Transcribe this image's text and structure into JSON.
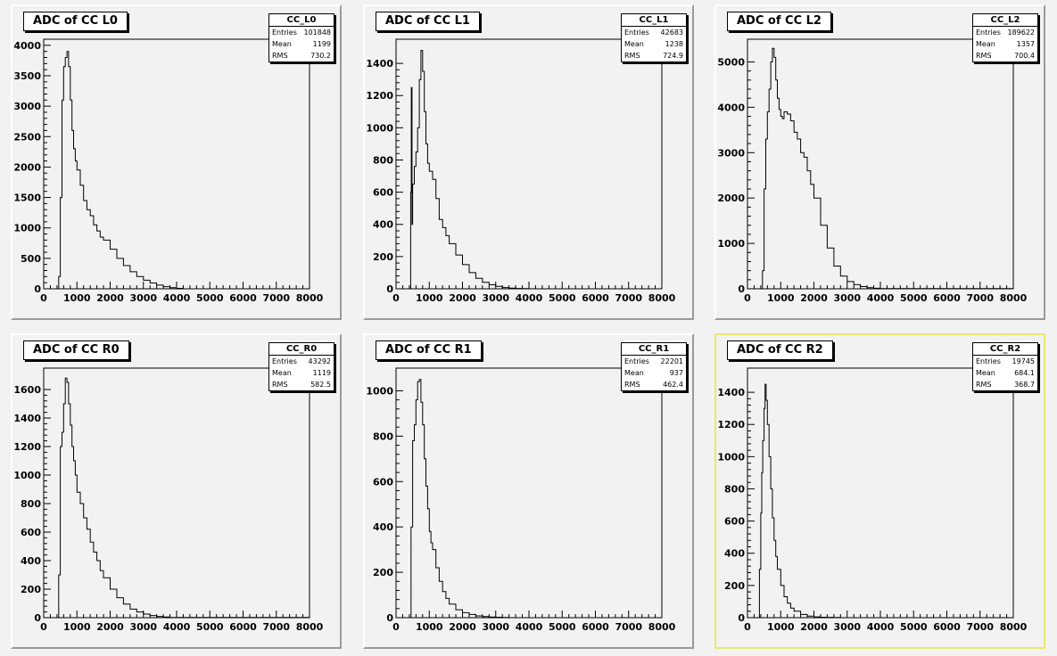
{
  "chart_data": [
    {
      "type": "bar",
      "histogram": "CC_L0",
      "title": "ADC of CC L0",
      "entries": "101848",
      "mean": "1199",
      "rms": "730.2",
      "xlim": [
        0,
        8000
      ],
      "ylim": [
        0,
        4100
      ],
      "yticks": [
        0,
        500,
        1000,
        1500,
        2000,
        2500,
        3000,
        3500,
        4000
      ],
      "xticks": [
        0,
        1000,
        2000,
        3000,
        4000,
        5000,
        6000,
        7000,
        8000
      ],
      "curve": {
        "x": [
          0,
          400,
          450,
          500,
          550,
          600,
          650,
          700,
          750,
          800,
          850,
          900,
          950,
          1000,
          1100,
          1200,
          1300,
          1400,
          1500,
          1600,
          1700,
          1800,
          2000,
          2200,
          2400,
          2600,
          2800,
          3000,
          3200,
          3400,
          3600,
          3800,
          4000,
          4200,
          8000
        ],
        "y": [
          0,
          0,
          200,
          1500,
          3100,
          3650,
          3800,
          3900,
          3650,
          3100,
          2600,
          2300,
          2100,
          1950,
          1700,
          1450,
          1300,
          1200,
          1050,
          950,
          850,
          800,
          650,
          500,
          380,
          280,
          200,
          140,
          95,
          60,
          35,
          18,
          8,
          0,
          0
        ]
      }
    },
    {
      "type": "bar",
      "histogram": "CC_L1",
      "title": "ADC of CC L1",
      "entries": "42683",
      "mean": "1238",
      "rms": "724.9",
      "xlim": [
        0,
        8000
      ],
      "ylim": [
        0,
        1550
      ],
      "yticks": [
        0,
        200,
        400,
        600,
        800,
        1000,
        1200,
        1400
      ],
      "xticks": [
        0,
        1000,
        2000,
        3000,
        4000,
        5000,
        6000,
        7000,
        8000
      ],
      "curve": {
        "x": [
          0,
          400,
          440,
          460,
          480,
          500,
          550,
          600,
          650,
          700,
          750,
          800,
          850,
          900,
          950,
          1000,
          1100,
          1200,
          1300,
          1400,
          1500,
          1600,
          1800,
          2000,
          2200,
          2400,
          2600,
          2800,
          3000,
          3200,
          3400,
          3600,
          3800,
          4000,
          8000
        ],
        "y": [
          0,
          0,
          600,
          1250,
          400,
          650,
          760,
          850,
          1000,
          1300,
          1480,
          1350,
          1100,
          900,
          780,
          730,
          680,
          560,
          430,
          380,
          330,
          280,
          210,
          150,
          100,
          65,
          40,
          25,
          15,
          8,
          4,
          2,
          1,
          0,
          0
        ]
      }
    },
    {
      "type": "bar",
      "histogram": "CC_L2",
      "title": "ADC of CC L2",
      "entries": "189622",
      "mean": "1357",
      "rms": "700.4",
      "xlim": [
        0,
        8000
      ],
      "ylim": [
        0,
        5500
      ],
      "yticks": [
        0,
        1000,
        2000,
        3000,
        4000,
        5000
      ],
      "xticks": [
        0,
        1000,
        2000,
        3000,
        4000,
        5000,
        6000,
        7000,
        8000
      ],
      "curve": {
        "x": [
          0,
          400,
          450,
          500,
          550,
          600,
          650,
          700,
          750,
          800,
          850,
          900,
          950,
          1000,
          1050,
          1100,
          1200,
          1300,
          1400,
          1500,
          1600,
          1700,
          1800,
          1900,
          2000,
          2200,
          2400,
          2600,
          2800,
          3000,
          3200,
          3400,
          3600,
          3800,
          4000,
          8000
        ],
        "y": [
          0,
          0,
          400,
          2200,
          3300,
          3900,
          4400,
          5000,
          5300,
          5100,
          4600,
          4200,
          3950,
          3800,
          3750,
          3900,
          3850,
          3700,
          3450,
          3300,
          3000,
          2900,
          2600,
          2300,
          2000,
          1400,
          900,
          500,
          280,
          160,
          90,
          50,
          25,
          12,
          5,
          0
        ]
      }
    },
    {
      "type": "bar",
      "histogram": "CC_R0",
      "title": "ADC of CC R0",
      "entries": "43292",
      "mean": "1119",
      "rms": "582.5",
      "xlim": [
        0,
        8000
      ],
      "ylim": [
        0,
        1750
      ],
      "yticks": [
        0,
        200,
        400,
        600,
        800,
        1000,
        1200,
        1400,
        1600
      ],
      "xticks": [
        0,
        1000,
        2000,
        3000,
        4000,
        5000,
        6000,
        7000,
        8000
      ],
      "curve": {
        "x": [
          0,
          400,
          450,
          500,
          550,
          600,
          650,
          700,
          750,
          800,
          850,
          900,
          950,
          1000,
          1100,
          1200,
          1300,
          1400,
          1500,
          1600,
          1700,
          1800,
          2000,
          2200,
          2400,
          2600,
          2800,
          3000,
          3200,
          3400,
          3600,
          3800,
          4000,
          8000
        ],
        "y": [
          0,
          0,
          300,
          1200,
          1300,
          1500,
          1680,
          1650,
          1500,
          1350,
          1200,
          1100,
          1000,
          880,
          800,
          700,
          620,
          530,
          460,
          400,
          330,
          280,
          200,
          140,
          95,
          60,
          40,
          25,
          15,
          9,
          5,
          2,
          1,
          0
        ]
      }
    },
    {
      "type": "bar",
      "histogram": "CC_R1",
      "title": "ADC of CC R1",
      "entries": "22201",
      "mean": "937",
      "rms": "462.4",
      "xlim": [
        0,
        8000
      ],
      "ylim": [
        0,
        1100
      ],
      "yticks": [
        0,
        200,
        400,
        600,
        800,
        1000
      ],
      "xticks": [
        0,
        1000,
        2000,
        3000,
        4000,
        5000,
        6000,
        7000,
        8000
      ],
      "curve": {
        "x": [
          0,
          400,
          450,
          500,
          550,
          600,
          650,
          700,
          750,
          800,
          850,
          900,
          950,
          1000,
          1050,
          1100,
          1200,
          1300,
          1400,
          1500,
          1600,
          1800,
          2000,
          2200,
          2400,
          2600,
          2800,
          3000,
          3200,
          3400,
          3600,
          8000
        ],
        "y": [
          0,
          0,
          400,
          780,
          850,
          960,
          1040,
          1050,
          950,
          850,
          700,
          580,
          480,
          380,
          330,
          300,
          220,
          160,
          115,
          85,
          60,
          35,
          22,
          14,
          8,
          5,
          3,
          2,
          1,
          0,
          0,
          0
        ]
      }
    },
    {
      "type": "bar",
      "histogram": "CC_R2",
      "title": "ADC of CC R2",
      "entries": "19745",
      "mean": "684.1",
      "rms": "368.7",
      "xlim": [
        0,
        8000
      ],
      "ylim": [
        0,
        1550
      ],
      "yticks": [
        0,
        200,
        400,
        600,
        800,
        1000,
        1200,
        1400
      ],
      "xticks": [
        0,
        1000,
        2000,
        3000,
        4000,
        5000,
        6000,
        7000,
        8000
      ],
      "curve": {
        "x": [
          0,
          330,
          360,
          400,
          430,
          460,
          500,
          530,
          560,
          600,
          650,
          700,
          750,
          800,
          850,
          900,
          1000,
          1100,
          1200,
          1300,
          1400,
          1600,
          1800,
          2000,
          2200,
          2400,
          2600,
          2800,
          3000,
          8000
        ],
        "y": [
          0,
          0,
          300,
          650,
          900,
          1100,
          1300,
          1450,
          1350,
          1200,
          1000,
          800,
          620,
          480,
          380,
          300,
          200,
          130,
          90,
          60,
          40,
          20,
          10,
          5,
          3,
          2,
          1,
          0,
          0,
          0
        ]
      }
    }
  ]
}
